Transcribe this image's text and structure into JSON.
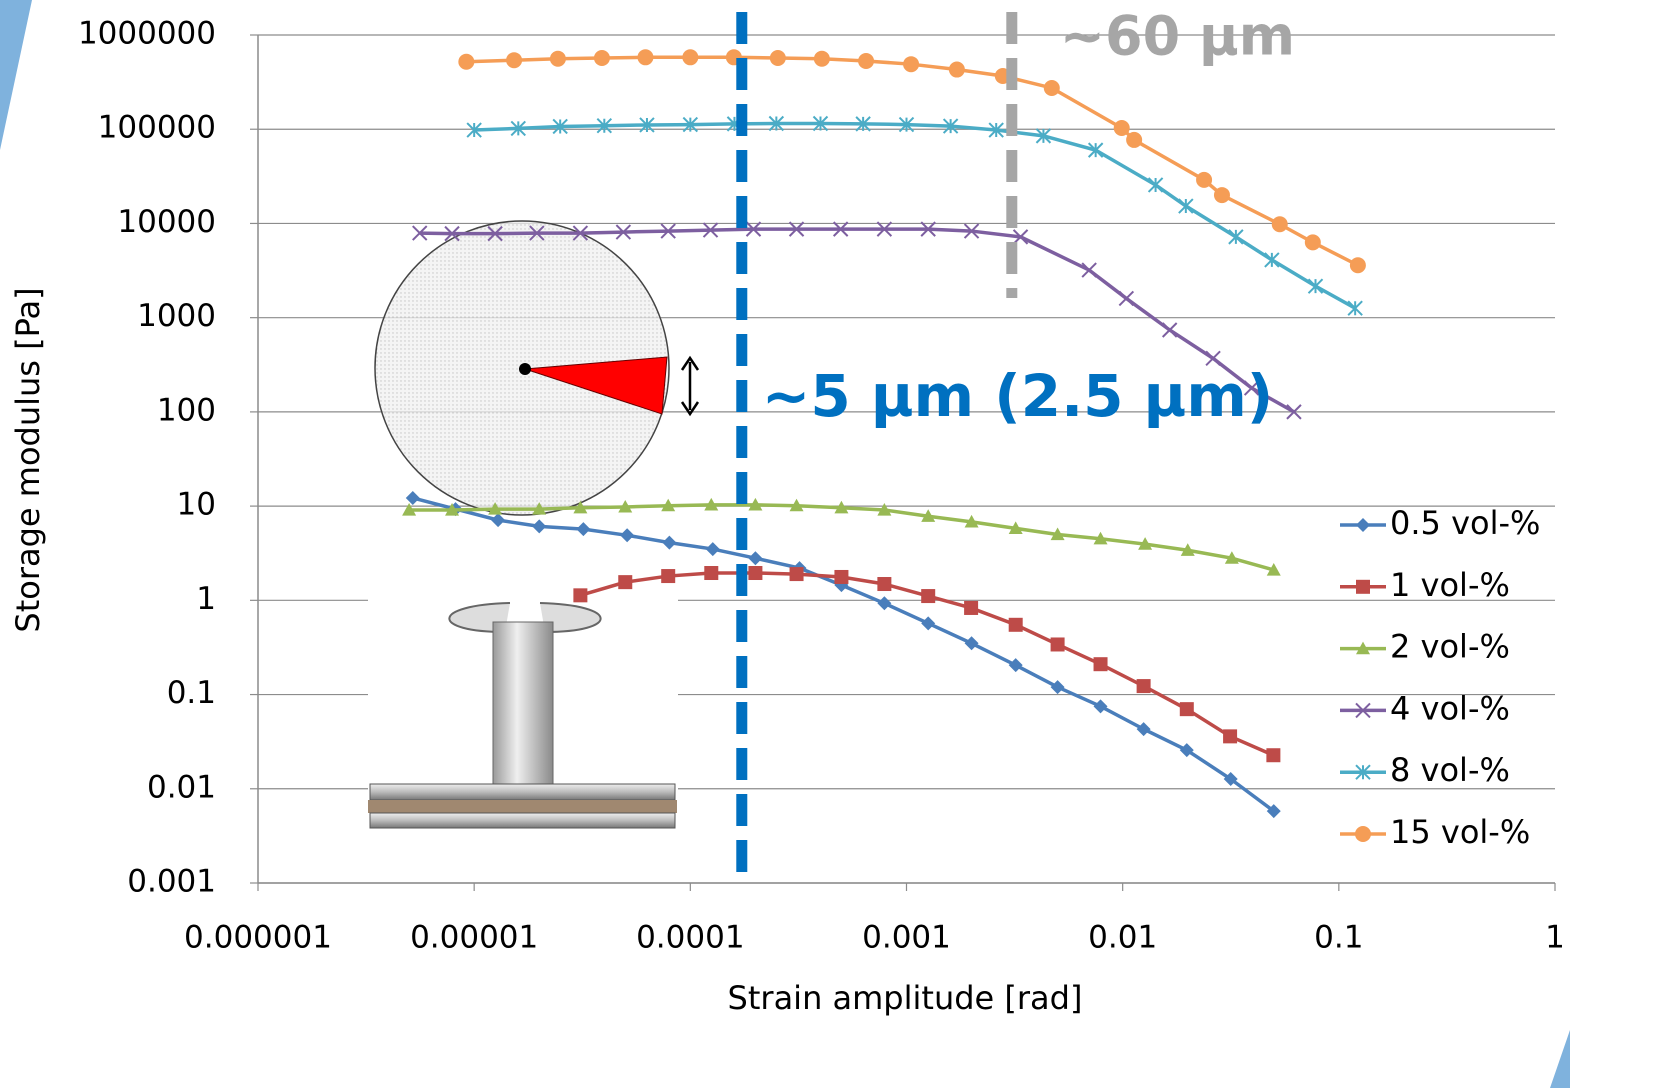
{
  "chart_data": {
    "type": "line",
    "xscale": "log",
    "yscale": "log",
    "x_label": "Strain amplitude [rad]",
    "y_label": "Storage modulus [Pa]",
    "xlim": [
      1e-06,
      1
    ],
    "ylim": [
      0.001,
      1000000
    ],
    "xticks": [
      1e-06,
      1e-05,
      0.0001,
      0.001,
      0.01,
      0.1,
      1
    ],
    "yticks": [
      0.001,
      0.01,
      0.1,
      1,
      10,
      100,
      1000,
      10000,
      100000,
      1000000
    ],
    "grid": true,
    "legend": "right",
    "series": [
      {
        "name": "0.5 vol-%",
        "color": "#4a7ebb",
        "marker": "diamond",
        "x": [
          5.2e-06,
          8.2e-06,
          1.29e-05,
          2e-05,
          3.2e-05,
          5.1e-05,
          8e-05,
          0.000127,
          0.0002,
          0.00032,
          0.0005,
          0.00079,
          0.00126,
          0.002,
          0.0032,
          0.005,
          0.0079,
          0.0125,
          0.0198,
          0.0316,
          0.05
        ],
        "values": [
          12.2,
          9.3,
          7.1,
          6.1,
          5.7,
          4.9,
          4.1,
          3.5,
          2.8,
          2.2,
          1.45,
          0.93,
          0.57,
          0.35,
          0.205,
          0.12,
          0.075,
          0.043,
          0.0257,
          0.0127,
          0.0058
        ]
      },
      {
        "name": "1 vol-%",
        "color": "#be4b48",
        "marker": "square",
        "x": [
          3.1e-05,
          5e-05,
          7.9e-05,
          0.000125,
          0.0002,
          0.00031,
          0.0005,
          0.00079,
          0.00126,
          0.00199,
          0.0032,
          0.005,
          0.0079,
          0.0125,
          0.0198,
          0.0314,
          0.0498
        ],
        "values": [
          1.13,
          1.56,
          1.81,
          1.95,
          1.95,
          1.9,
          1.77,
          1.49,
          1.11,
          0.83,
          0.55,
          0.34,
          0.21,
          0.123,
          0.07,
          0.036,
          0.0227
        ]
      },
      {
        "name": "2 vol-%",
        "color": "#98b954",
        "marker": "triangle",
        "x": [
          5e-06,
          7.9e-06,
          1.25e-05,
          2e-05,
          3.1e-05,
          5e-05,
          7.9e-05,
          0.000125,
          0.0002,
          0.00031,
          0.0005,
          0.00079,
          0.00126,
          0.002,
          0.0032,
          0.005,
          0.0079,
          0.0127,
          0.02,
          0.032,
          0.05
        ],
        "values": [
          9.1,
          9.1,
          9.3,
          9.3,
          9.6,
          9.8,
          10.1,
          10.3,
          10.3,
          10.1,
          9.6,
          9.1,
          7.8,
          6.8,
          5.8,
          5.0,
          4.5,
          3.95,
          3.4,
          2.8,
          2.1
        ]
      },
      {
        "name": "4 vol-%",
        "color": "#7d5fa0",
        "marker": "x",
        "x": [
          5.6e-06,
          7.9e-06,
          1.25e-05,
          1.95e-05,
          3.1e-05,
          4.9e-05,
          7.9e-05,
          0.000124,
          0.000196,
          0.00031,
          0.000496,
          0.00079,
          0.00126,
          0.002,
          0.00337,
          0.007,
          0.0104,
          0.0165,
          0.0262,
          0.0395,
          0.062
        ],
        "values": [
          7900,
          7800,
          7800,
          7900,
          7900,
          8100,
          8300,
          8500,
          8700,
          8700,
          8700,
          8700,
          8700,
          8300,
          7200,
          3200,
          1600,
          740,
          370,
          179,
          100
        ]
      },
      {
        "name": "8 vol-%",
        "color": "#4bacc6",
        "marker": "asterisk",
        "x": [
          1e-05,
          1.6e-05,
          2.5e-05,
          4e-05,
          6.3e-05,
          0.0001,
          0.00016,
          0.00025,
          0.0004,
          0.00063,
          0.001,
          0.0016,
          0.0026,
          0.0043,
          0.0075,
          0.0142,
          0.0196,
          0.0334,
          0.049,
          0.078,
          0.119
        ],
        "values": [
          98000,
          102000,
          107000,
          109000,
          111000,
          112000,
          114000,
          115000,
          115000,
          114000,
          112000,
          108000,
          98000,
          85000,
          60000,
          25600,
          15300,
          7200,
          4100,
          2160,
          1260
        ]
      },
      {
        "name": "15 vol-%",
        "color": "#f59d56",
        "marker": "circle",
        "x": [
          9.2e-06,
          1.53e-05,
          2.44e-05,
          3.9e-05,
          6.2e-05,
          0.0001,
          0.000159,
          0.000254,
          0.000406,
          0.00065,
          0.00105,
          0.00171,
          0.00279,
          0.0047,
          0.0099,
          0.0113,
          0.0238,
          0.0288,
          0.0533,
          0.0758,
          0.1225
        ],
        "values": [
          520000,
          540000,
          560000,
          570000,
          580000,
          580000,
          580000,
          570000,
          560000,
          530000,
          490000,
          430000,
          367000,
          274000,
          103000,
          77000,
          29000,
          20000,
          9800,
          6300,
          3600
        ]
      }
    ],
    "annotations": [
      {
        "text": "~5 µm (2.5 µm)",
        "x": 0.000173,
        "color": "#0070c0"
      },
      {
        "text": "~60 µm",
        "x": 0.00307,
        "color": "#a6a6a6"
      }
    ]
  }
}
